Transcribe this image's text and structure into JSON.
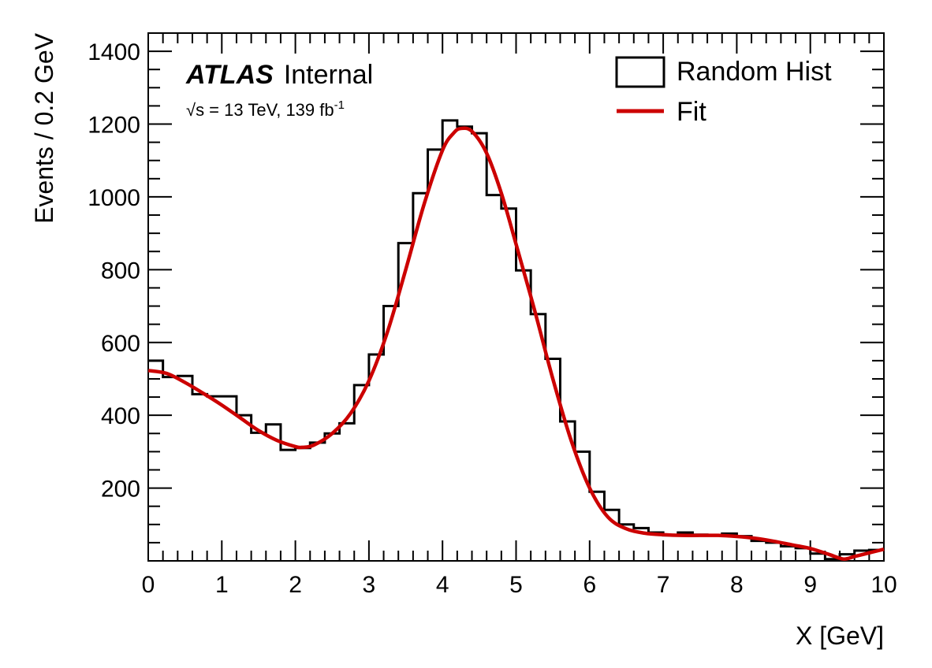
{
  "chart_data": {
    "type": "histogram",
    "xlabel": "X [GeV]",
    "ylabel": "Events / 0.2 GeV",
    "xlim": [
      0,
      10
    ],
    "ylim": [
      0,
      1450
    ],
    "x_ticks": [
      "0",
      "1",
      "2",
      "3",
      "4",
      "5",
      "6",
      "7",
      "8",
      "9",
      "10"
    ],
    "y_ticks": [
      "200",
      "400",
      "600",
      "800",
      "1000",
      "1200",
      "1400"
    ],
    "bin_width": 0.2,
    "bin_edges_start": 0,
    "hist_values": [
      550,
      505,
      508,
      458,
      452,
      452,
      400,
      352,
      375,
      305,
      310,
      325,
      350,
      378,
      483,
      567,
      700,
      873,
      1010,
      1130,
      1210,
      1193,
      1175,
      1005,
      968,
      798,
      678,
      555,
      383,
      300,
      190,
      140,
      100,
      90,
      78,
      70,
      78,
      72,
      70,
      75,
      68,
      55,
      50,
      40,
      35,
      20,
      5,
      18,
      28,
      30
    ],
    "fit_x": [
      0,
      0.25,
      0.5,
      0.75,
      1.0,
      1.25,
      1.5,
      1.75,
      2.0,
      2.1,
      2.25,
      2.5,
      2.75,
      3.0,
      3.25,
      3.5,
      3.75,
      4.0,
      4.15,
      4.25,
      4.4,
      4.6,
      4.8,
      5.0,
      5.25,
      5.5,
      5.75,
      6.0,
      6.25,
      6.5,
      6.75,
      7.0,
      7.25,
      7.5,
      7.75,
      8.0,
      8.25,
      8.5,
      8.75,
      9.0,
      9.25,
      9.45,
      9.6,
      9.8,
      10.0
    ],
    "fit_y": [
      523,
      515,
      490,
      460,
      428,
      393,
      358,
      331,
      314,
      312,
      318,
      350,
      405,
      495,
      628,
      800,
      980,
      1128,
      1175,
      1188,
      1180,
      1120,
      1010,
      870,
      690,
      500,
      330,
      200,
      120,
      88,
      76,
      72,
      70,
      70,
      70,
      67,
      62,
      54,
      44,
      34,
      18,
      5,
      12,
      22,
      32
    ],
    "series": [
      {
        "name": "Random Hist",
        "kind": "histogram",
        "color": "#000000"
      },
      {
        "name": "Fit",
        "kind": "line",
        "color": "#cc0000"
      }
    ],
    "legend": "top-right",
    "grid": false,
    "annotations": {
      "experiment": "ATLAS",
      "status": "Internal",
      "energy_prefix": "√s = 13 TeV, 139 fb",
      "energy_superscript": "-1"
    }
  }
}
